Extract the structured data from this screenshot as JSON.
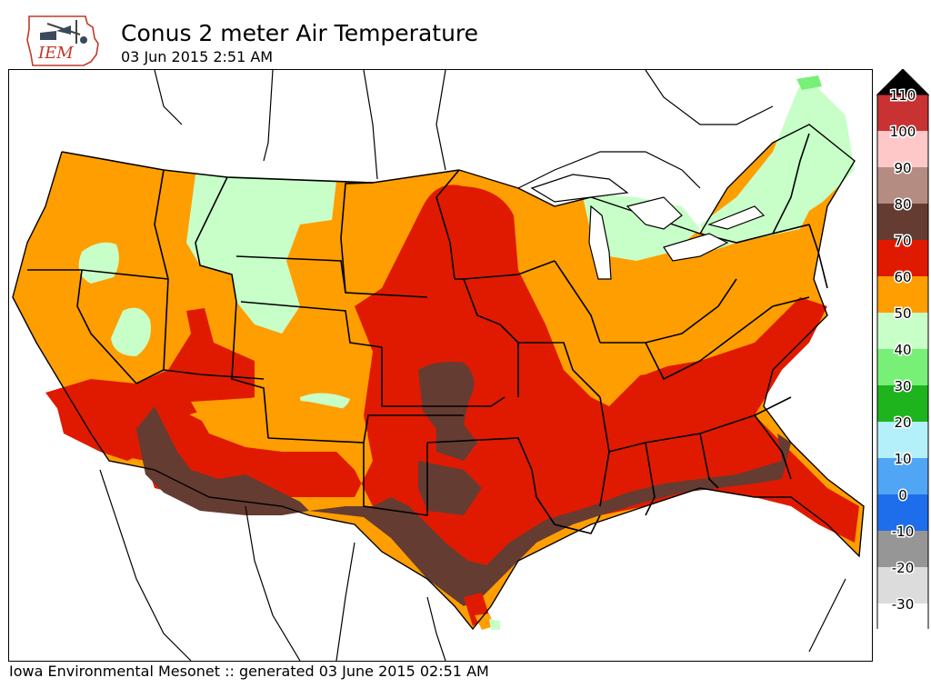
{
  "header": {
    "title": "Conus 2 meter Air Temperature",
    "subtitle": "03 Jun 2015 2:51 AM",
    "logo_text": "IEM"
  },
  "footer": {
    "credit": "Iowa Environmental Mesonet :: generated 03 June 2015 02:51 AM"
  },
  "legend": {
    "levels": [
      {
        "label": "110",
        "color": "#c83232"
      },
      {
        "label": "100",
        "color": "#ffc8c8"
      },
      {
        "label": "90",
        "color": "#b48c82"
      },
      {
        "label": "80",
        "color": "#643c32"
      },
      {
        "label": "70",
        "color": "#e01a00"
      },
      {
        "label": "60",
        "color": "#ff9e00"
      },
      {
        "label": "50",
        "color": "#c8ffc8"
      },
      {
        "label": "40",
        "color": "#78f078"
      },
      {
        "label": "30",
        "color": "#1eb41e"
      },
      {
        "label": "20",
        "color": "#b4f0fa"
      },
      {
        "label": "10",
        "color": "#50a5f5"
      },
      {
        "label": "0",
        "color": "#1e6eeb"
      },
      {
        "label": "-10",
        "color": "#969696"
      },
      {
        "label": "-20",
        "color": "#dcdcdc"
      },
      {
        "label": "-30",
        "color": "#ffffff"
      }
    ],
    "over_color": "#000000",
    "under_color": "#ffffff"
  },
  "map_colors": {
    "brown": "#643c32",
    "red": "#e01a00",
    "orange": "#ff9e00",
    "light_green": "#c8ffc8",
    "green": "#78f078"
  }
}
